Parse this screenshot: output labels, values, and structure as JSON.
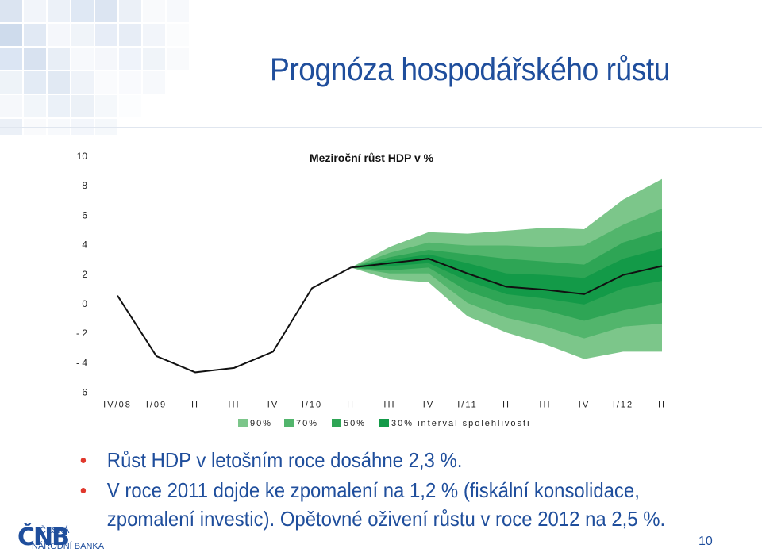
{
  "slide": {
    "title": "Prognóza hospodářského růstu",
    "page_number": "10",
    "bullets": [
      "Růst HDP v letošním roce dosáhne 2,3 %.",
      "V roce 2011 dojde ke zpomalení na 1,2 % (fiskální konsolidace, zpomalení investic). Opětovné oživení růstu v roce 2012 na 2,5 %."
    ],
    "logo": {
      "mark": "ČNB",
      "line1": "ČESKÁ",
      "line2": "NÁRODNÍ BANKA"
    },
    "colors": {
      "title": "#1f4e9c",
      "bullet": "#e0372c"
    }
  },
  "chart_data": {
    "type": "line",
    "title": "Meziroční růst HDP v %",
    "ylim": [
      -6,
      10
    ],
    "yticks": [
      "10",
      "8",
      "6",
      "4",
      "2",
      "0",
      "-2",
      "-4",
      "-6"
    ],
    "categories": [
      "IV/08",
      "I/09",
      "II",
      "III",
      "IV",
      "I/10",
      "II",
      "III",
      "IV",
      "I/11",
      "II",
      "III",
      "IV",
      "I/12",
      "II"
    ],
    "series": [
      {
        "values": [
          0.5,
          -3.6,
          -4.7,
          -4.4,
          -3.3,
          1.0,
          2.4,
          2.7,
          3.0,
          2.0,
          1.1,
          0.9,
          0.6,
          1.9,
          2.5
        ]
      }
    ],
    "fan_start_index": 6,
    "fan_bands": [
      {
        "lower": [
          2.4,
          1.6,
          1.4,
          -0.9,
          -2.0,
          -2.8,
          -3.8,
          -3.3,
          -3.3
        ],
        "upper": [
          2.4,
          3.8,
          4.8,
          4.7,
          4.9,
          5.1,
          5.0,
          7.0,
          8.4
        ],
        "color": "#7cc68a"
      },
      {
        "lower": [
          2.4,
          2.0,
          2.0,
          0.0,
          -1.0,
          -1.6,
          -2.4,
          -1.6,
          -1.4
        ],
        "upper": [
          2.4,
          3.4,
          4.1,
          3.9,
          3.9,
          3.8,
          3.9,
          5.3,
          6.4
        ],
        "color": "#52b56c"
      },
      {
        "lower": [
          2.4,
          2.2,
          2.4,
          0.8,
          -0.1,
          -0.5,
          -1.2,
          -0.5,
          0.0
        ],
        "upper": [
          2.4,
          3.1,
          3.6,
          3.3,
          3.0,
          2.8,
          2.6,
          4.1,
          4.9
        ],
        "color": "#2ea555"
      },
      {
        "lower": [
          2.4,
          2.5,
          2.7,
          1.5,
          0.6,
          0.3,
          -0.1,
          1.0,
          1.5
        ],
        "upper": [
          2.4,
          2.9,
          3.3,
          2.7,
          2.0,
          1.9,
          1.7,
          3.0,
          3.7
        ],
        "color": "#139a48"
      }
    ],
    "legend": {
      "placement": "bottom",
      "entries": [
        {
          "label": "90%",
          "color": "#7cc68a"
        },
        {
          "label": "70%",
          "color": "#52b56c"
        },
        {
          "label": "50%",
          "color": "#2ea555"
        },
        {
          "label": "30% interval spolehlivosti",
          "color": "#139a48"
        }
      ]
    },
    "grid": false
  }
}
